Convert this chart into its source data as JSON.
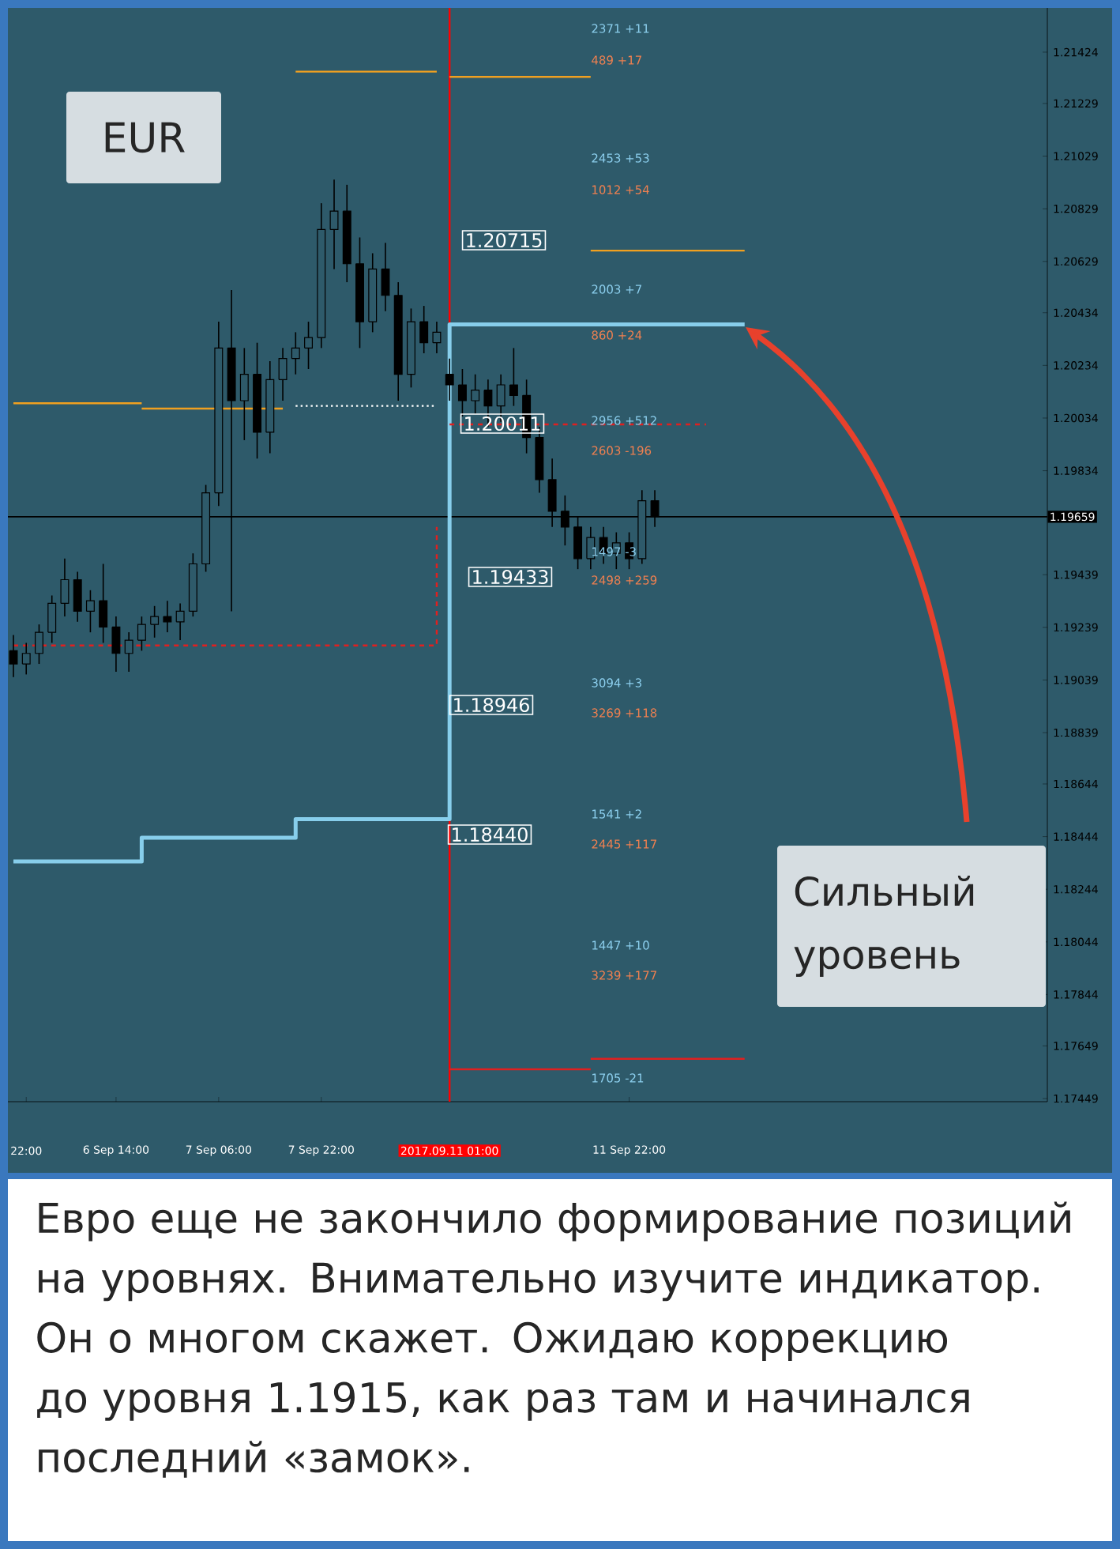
{
  "chart_data": {
    "type": "candlestick",
    "title": "EUR",
    "color": "#000000",
    "categories": [
      null,
      "22:00",
      null,
      null,
      null,
      null,
      null,
      null,
      "6 Sep 14:00",
      null,
      null,
      null,
      null,
      null,
      null,
      null,
      "7 Sep 06:00",
      null,
      null,
      null,
      null,
      null,
      null,
      null,
      "7 Sep 22:00",
      null,
      null,
      null,
      null,
      null,
      null,
      null,
      null,
      null,
      "2017.09.11 01:00",
      null,
      null,
      null,
      null,
      null,
      null,
      null,
      null,
      null,
      null,
      null,
      null,
      null,
      "11 Sep 22:00",
      null,
      null,
      null,
      null,
      null,
      null,
      null,
      null,
      null,
      null,
      null,
      null,
      null,
      null,
      null,
      null,
      null,
      null,
      null,
      null,
      null,
      null,
      null,
      null,
      null,
      null,
      null,
      null,
      null,
      null,
      null,
      null
    ],
    "ohlc": [
      [
        1.1915,
        1.1921,
        1.1905,
        1.191
      ],
      [
        1.191,
        1.1918,
        1.1906,
        1.1914
      ],
      [
        1.1914,
        1.1925,
        1.191,
        1.1922
      ],
      [
        1.1922,
        1.1936,
        1.1918,
        1.1933
      ],
      [
        1.1933,
        1.195,
        1.1928,
        1.1942
      ],
      [
        1.1942,
        1.1945,
        1.1926,
        1.193
      ],
      [
        1.193,
        1.1938,
        1.1922,
        1.1934
      ],
      [
        1.1934,
        1.1948,
        1.1918,
        1.1924
      ],
      [
        1.1924,
        1.1928,
        1.1907,
        1.1914
      ],
      [
        1.1914,
        1.1922,
        1.1907,
        1.1919
      ],
      [
        1.1919,
        1.1928,
        1.1915,
        1.1925
      ],
      [
        1.1925,
        1.1932,
        1.192,
        1.1928
      ],
      [
        1.1928,
        1.1934,
        1.1922,
        1.1926
      ],
      [
        1.1926,
        1.1933,
        1.1919,
        1.193
      ],
      [
        1.193,
        1.1952,
        1.1928,
        1.1948
      ],
      [
        1.1948,
        1.1978,
        1.1945,
        1.1975
      ],
      [
        1.1975,
        1.204,
        1.197,
        1.203
      ],
      [
        1.203,
        1.2052,
        1.193,
        1.201
      ],
      [
        1.201,
        1.203,
        1.1995,
        1.202
      ],
      [
        1.202,
        1.2032,
        1.1988,
        1.1998
      ],
      [
        1.1998,
        1.2025,
        1.199,
        1.2018
      ],
      [
        1.2018,
        1.203,
        1.201,
        1.2026
      ],
      [
        1.2026,
        1.2036,
        1.202,
        1.203
      ],
      [
        1.203,
        1.204,
        1.2022,
        1.2034
      ],
      [
        1.2034,
        1.2085,
        1.203,
        1.2075
      ],
      [
        1.2075,
        1.2094,
        1.206,
        1.2082
      ],
      [
        1.2082,
        1.2092,
        1.2055,
        1.2062
      ],
      [
        1.2062,
        1.2072,
        1.203,
        1.204
      ],
      [
        1.204,
        1.2066,
        1.2036,
        1.206
      ],
      [
        1.206,
        1.207,
        1.2044,
        1.205
      ],
      [
        1.205,
        1.2055,
        1.201,
        1.202
      ],
      [
        1.202,
        1.2045,
        1.2015,
        1.204
      ],
      [
        1.204,
        1.2046,
        1.2028,
        1.2032
      ],
      [
        1.2032,
        1.204,
        1.2028,
        1.2036
      ],
      [
        1.202,
        1.2026,
        1.201,
        1.2016
      ],
      [
        1.2016,
        1.2022,
        1.2004,
        1.201
      ],
      [
        1.201,
        1.202,
        1.2005,
        1.2014
      ],
      [
        1.2014,
        1.2018,
        1.2,
        1.2008
      ],
      [
        1.2008,
        1.202,
        1.2002,
        1.2016
      ],
      [
        1.2016,
        1.203,
        1.2008,
        1.2012
      ],
      [
        1.2012,
        1.2018,
        1.199,
        1.1996
      ],
      [
        1.1996,
        1.2,
        1.1975,
        1.198
      ],
      [
        1.198,
        1.1988,
        1.1962,
        1.1968
      ],
      [
        1.1968,
        1.1974,
        1.1955,
        1.1962
      ],
      [
        1.1962,
        1.1966,
        1.1946,
        1.195
      ],
      [
        1.195,
        1.1962,
        1.1946,
        1.1958
      ],
      [
        1.1958,
        1.1962,
        1.1948,
        1.1952
      ],
      [
        1.1952,
        1.196,
        1.1946,
        1.1956
      ],
      [
        1.1956,
        1.196,
        1.1946,
        1.195
      ],
      [
        1.195,
        1.1976,
        1.1948,
        1.1972
      ],
      [
        1.1972,
        1.1976,
        1.1962,
        1.1966
      ],
      null,
      null,
      null,
      null,
      null,
      null,
      null,
      null,
      null,
      null,
      null,
      null,
      null,
      null,
      null,
      null,
      null,
      null,
      null,
      null,
      null,
      null,
      null,
      null,
      null,
      null,
      null,
      null,
      null,
      null
    ],
    "series": [
      {
        "type": "step",
        "color": "#87ceeb",
        "values": [
          1.1835,
          1.1835,
          1.1835,
          1.1835,
          1.1835,
          1.1835,
          1.1835,
          1.1835,
          1.1835,
          1.1835,
          1.1844,
          1.1844,
          1.1844,
          1.1844,
          1.1844,
          1.1844,
          1.1844,
          1.1844,
          1.1844,
          1.1844,
          1.1844,
          1.1844,
          1.1851,
          1.1851,
          1.1851,
          1.1851,
          1.1851,
          1.1851,
          1.1851,
          1.1851,
          1.1851,
          1.1851,
          1.1851,
          1.1851,
          1.2039,
          1.2039,
          1.2039,
          1.2039,
          1.2039,
          1.2039,
          1.2039,
          1.2039,
          1.2039,
          1.2039,
          1.2039,
          1.2039,
          1.2039,
          1.2039,
          1.2039,
          1.2039,
          1.2039,
          1.2039,
          1.2039,
          1.2039,
          1.2039,
          1.2039,
          1.2039,
          1.2039,
          null,
          null,
          null,
          null,
          null,
          null,
          null,
          null,
          null,
          null,
          null,
          null,
          null,
          null,
          null,
          null,
          null,
          null,
          null,
          null,
          null,
          null,
          null
        ]
      },
      {
        "type": "step",
        "color": "#e02020",
        "line_style": "dashed",
        "values": [
          1.1917,
          1.1917,
          1.1917,
          1.1917,
          1.1917,
          1.1917,
          1.1917,
          1.1917,
          1.1917,
          1.1917,
          1.1917,
          1.1917,
          1.1917,
          1.1917,
          1.1917,
          1.1917,
          1.1917,
          1.1917,
          1.1917,
          1.1917,
          1.1917,
          1.1917,
          1.1917,
          1.1917,
          1.1917,
          1.1917,
          1.1917,
          1.1917,
          1.1917,
          1.1917,
          1.1917,
          1.1917,
          1.1917,
          1.1962,
          null,
          null,
          null,
          null,
          null,
          null,
          null,
          null,
          null,
          null,
          null,
          null,
          null,
          null,
          null,
          null,
          null,
          null,
          null,
          null,
          null,
          null,
          null,
          null,
          null,
          null,
          null,
          null,
          null,
          null,
          null,
          null,
          null,
          null,
          null,
          null,
          null,
          null,
          null,
          null,
          null,
          null,
          null,
          null,
          null,
          null,
          null
        ]
      },
      {
        "type": "line",
        "color": "#e02020",
        "line_style": "dashed",
        "values": [
          null,
          null,
          null,
          null,
          null,
          null,
          null,
          null,
          null,
          null,
          null,
          null,
          null,
          null,
          null,
          null,
          null,
          null,
          null,
          null,
          null,
          null,
          null,
          null,
          null,
          null,
          null,
          null,
          null,
          null,
          null,
          null,
          null,
          null,
          1.2001,
          1.2001,
          1.2001,
          1.2001,
          1.2001,
          1.2001,
          1.2001,
          1.2001,
          1.2001,
          1.2001,
          1.2001,
          1.2001,
          1.2001,
          1.2001,
          1.2001,
          1.2001,
          1.2001,
          1.2001,
          1.2001,
          1.2001,
          1.2001,
          null,
          null,
          null,
          null,
          null,
          null,
          null,
          null,
          null,
          null,
          null,
          null,
          null,
          null,
          null,
          null,
          null,
          null,
          null,
          null,
          null,
          null,
          null,
          null,
          null,
          null
        ]
      },
      {
        "type": "line",
        "color": "#f0a020",
        "values": [
          null,
          null,
          null,
          null,
          null,
          null,
          null,
          null,
          null,
          null,
          null,
          null,
          null,
          null,
          null,
          null,
          null,
          null,
          null,
          null,
          null,
          null,
          1.2135,
          1.2135,
          1.2135,
          1.2135,
          1.2135,
          1.2135,
          1.2135,
          1.2135,
          1.2135,
          1.2135,
          1.2135,
          1.2135,
          null,
          null,
          null,
          null,
          null,
          null,
          null,
          null,
          null,
          null,
          null,
          null,
          null,
          null,
          null,
          null,
          null,
          null,
          null,
          null,
          null,
          null,
          null,
          null,
          null,
          null,
          null,
          null,
          null,
          null,
          null,
          null,
          null,
          null,
          null,
          null,
          null,
          null,
          null,
          null,
          null,
          null,
          null,
          null,
          null,
          null,
          null
        ]
      },
      {
        "type": "line",
        "color": "#f0a020",
        "values": [
          null,
          null,
          null,
          null,
          null,
          null,
          null,
          null,
          null,
          null,
          null,
          null,
          null,
          null,
          null,
          null,
          null,
          null,
          null,
          null,
          null,
          null,
          null,
          null,
          null,
          null,
          null,
          null,
          null,
          null,
          null,
          null,
          null,
          null,
          1.2133,
          1.2133,
          1.2133,
          1.2133,
          1.2133,
          1.2133,
          1.2133,
          1.2133,
          1.2133,
          1.2133,
          1.2133,
          1.2133,
          null,
          null,
          null,
          null,
          null,
          null,
          null,
          null,
          null,
          null,
          null,
          null,
          null,
          null,
          null,
          null,
          null,
          null,
          null,
          null,
          null,
          null,
          null,
          null,
          null,
          null,
          null,
          null,
          null,
          null,
          null,
          null,
          null,
          null,
          null
        ]
      },
      {
        "type": "line",
        "color": "#f0a020",
        "values": [
          null,
          null,
          null,
          null,
          null,
          null,
          null,
          null,
          null,
          null,
          null,
          null,
          null,
          null,
          null,
          null,
          null,
          null,
          null,
          null,
          null,
          null,
          null,
          null,
          null,
          null,
          null,
          null,
          null,
          null,
          null,
          null,
          null,
          null,
          null,
          null,
          null,
          null,
          null,
          null,
          null,
          null,
          null,
          null,
          null,
          1.2067,
          1.2067,
          1.2067,
          1.2067,
          1.2067,
          1.2067,
          1.2067,
          1.2067,
          1.2067,
          1.2067,
          1.2067,
          1.2067,
          1.2067,
          null,
          null,
          null,
          null,
          null,
          null,
          null,
          null,
          null,
          null,
          null,
          null,
          null,
          null,
          null,
          null,
          null,
          null,
          null,
          null,
          null,
          null,
          null
        ]
      },
      {
        "type": "line",
        "color": "#f0a020",
        "values": [
          1.2009,
          1.2009,
          1.2009,
          1.2009,
          1.2009,
          1.2009,
          1.2009,
          1.2009,
          1.2009,
          1.2009,
          1.2009,
          null,
          null,
          null,
          null,
          null,
          null,
          null,
          null,
          null,
          null,
          null,
          null,
          null,
          null,
          null,
          null,
          null,
          null,
          null,
          null,
          null,
          null,
          null,
          null,
          null,
          null,
          null,
          null,
          null,
          null,
          null,
          null,
          null,
          null,
          null,
          null,
          null,
          null,
          null,
          null,
          null,
          null,
          null,
          null,
          null,
          null,
          null,
          null,
          null,
          null,
          null,
          null,
          null,
          null,
          null,
          null,
          null,
          null,
          null,
          null,
          null,
          null,
          null,
          null,
          null,
          null,
          null,
          null,
          null,
          null
        ]
      },
      {
        "type": "line",
        "color": "#f0a020",
        "values": [
          null,
          null,
          null,
          null,
          null,
          null,
          null,
          null,
          null,
          null,
          1.2007,
          1.2007,
          1.2007,
          1.2007,
          1.2007,
          1.2007,
          1.2007,
          1.2007,
          1.2007,
          1.2007,
          1.2007,
          1.2007,
          null,
          null,
          null,
          null,
          null,
          null,
          null,
          null,
          null,
          null,
          null,
          null,
          null,
          null,
          null,
          null,
          null,
          null,
          null,
          null,
          null,
          null,
          null,
          null,
          null,
          null,
          null,
          null,
          null,
          null,
          null,
          null,
          null,
          null,
          null,
          null,
          null,
          null,
          null,
          null,
          null,
          null,
          null,
          null,
          null,
          null,
          null,
          null,
          null,
          null,
          null,
          null,
          null,
          null,
          null,
          null,
          null,
          null,
          null
        ]
      },
      {
        "type": "line",
        "color": "#ffffff",
        "line_style": "dotted",
        "values": [
          null,
          null,
          null,
          null,
          null,
          null,
          null,
          null,
          null,
          null,
          null,
          null,
          null,
          null,
          null,
          null,
          null,
          null,
          null,
          null,
          null,
          null,
          1.2008,
          1.2008,
          1.2008,
          1.2008,
          1.2008,
          1.2008,
          1.2008,
          1.2008,
          1.2008,
          1.2008,
          1.2008,
          1.2008,
          null,
          null,
          null,
          null,
          null,
          null,
          null,
          null,
          null,
          null,
          null,
          null,
          null,
          null,
          null,
          null,
          null,
          null,
          null,
          null,
          null,
          null,
          null,
          null,
          null,
          null,
          null,
          null,
          null,
          null,
          null,
          null,
          null,
          null,
          null,
          null,
          null,
          null,
          null,
          null,
          null,
          null,
          null,
          null,
          null,
          null,
          null
        ]
      },
      {
        "type": "line",
        "color": "#e02020",
        "values": [
          null,
          null,
          null,
          null,
          null,
          null,
          null,
          null,
          null,
          null,
          null,
          null,
          null,
          null,
          null,
          null,
          null,
          null,
          null,
          null,
          null,
          null,
          null,
          null,
          null,
          null,
          null,
          null,
          null,
          null,
          null,
          null,
          null,
          null,
          1.1756,
          1.1756,
          1.1756,
          1.1756,
          1.1756,
          1.1756,
          1.1756,
          1.1756,
          1.1756,
          1.1756,
          1.1756,
          1.1756,
          null,
          null,
          null,
          null,
          null,
          null,
          null,
          null,
          null,
          null,
          null,
          null,
          null,
          null,
          null,
          null,
          null,
          null,
          null,
          null,
          null,
          null,
          null,
          null,
          null,
          null,
          null,
          null,
          null,
          null,
          null,
          null,
          null,
          null,
          null
        ]
      },
      {
        "type": "line",
        "color": "#e02020",
        "values": [
          null,
          null,
          null,
          null,
          null,
          null,
          null,
          null,
          null,
          null,
          null,
          null,
          null,
          null,
          null,
          null,
          null,
          null,
          null,
          null,
          null,
          null,
          null,
          null,
          null,
          null,
          null,
          null,
          null,
          null,
          null,
          null,
          null,
          null,
          null,
          null,
          null,
          null,
          null,
          null,
          null,
          null,
          null,
          null,
          null,
          1.176,
          1.176,
          1.176,
          1.176,
          1.176,
          1.176,
          1.176,
          1.176,
          1.176,
          1.176,
          1.176,
          1.176,
          1.176,
          null,
          null,
          null,
          null,
          null,
          null,
          null,
          null,
          null,
          null,
          null,
          null,
          null,
          null,
          null,
          null,
          null,
          null,
          null,
          null,
          null,
          null,
          null
        ]
      }
    ],
    "ylim": [
      1.17437,
      1.21592
    ],
    "yticks": [
      1.21424,
      1.21229,
      1.21029,
      1.20829,
      1.20629,
      1.20434,
      1.20234,
      1.20034,
      1.19834,
      1.19439,
      1.19239,
      1.19039,
      1.18839,
      1.18644,
      1.18444,
      1.18244,
      1.18044,
      1.17844,
      1.17649,
      1.17449
    ],
    "ref_lines": [
      {
        "axis": "y",
        "value": 1.19659,
        "label": "1.19659",
        "color": "#000000"
      },
      {
        "axis": "x",
        "value": "2017.09.11 01:00",
        "color": "#ff0000"
      }
    ],
    "annotations": [
      "1.20715",
      "1.20011",
      "1.19433",
      "1.18946",
      "1.18440",
      "2371 +11",
      "489 +17",
      "2453 +53",
      "1012 +54",
      "2003 +7",
      "860 +24",
      "2956 +512",
      "2603 -196",
      "1497 -3",
      "2498 +259",
      "3094 +3",
      "3269 +118",
      "1541 +2",
      "2445 +117",
      "1447 +10",
      "3239 +177",
      "1705 -21",
      "Сильный уровень",
      "Евро еще не закончило формирование позиций на уровнях. Внимательно изучите индикатор. Он о многом скажет. Ожидаю коррекцию до уровня 1.1915, как раз там и начинался последний «замок»."
    ]
  }
}
